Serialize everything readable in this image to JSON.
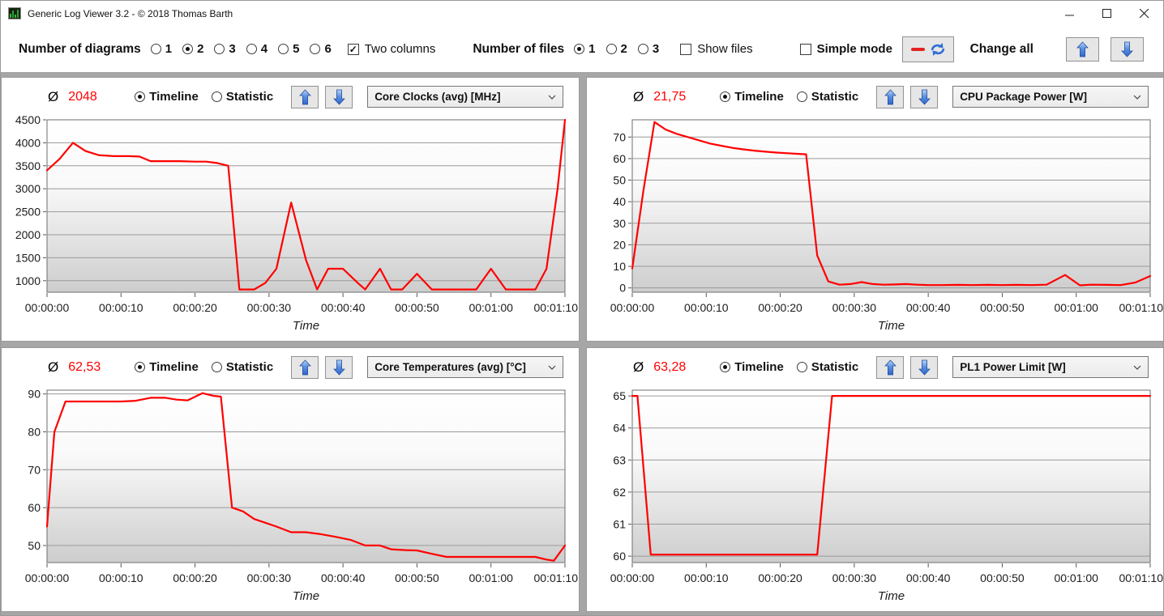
{
  "window": {
    "title": "Generic Log Viewer 3.2 - © 2018 Thomas Barth",
    "icons": {
      "app_icon": "log-chart-icon",
      "minimize": "minimize-dash",
      "maximize": "maximize-square",
      "close": "close-x",
      "move_up": "blue-arrow-up",
      "move_down": "blue-arrow-down",
      "refresh": "red-line-with-refresh-arrows",
      "combo_chevron": "chevron-down"
    }
  },
  "toolbar": {
    "diagrams": {
      "label": "Number of diagrams",
      "options": [
        "1",
        "2",
        "3",
        "4",
        "5",
        "6"
      ],
      "selected": "2"
    },
    "two_columns": {
      "label": "Two columns",
      "checked": true
    },
    "files": {
      "label": "Number of files",
      "options": [
        "1",
        "2",
        "3"
      ],
      "selected": "1"
    },
    "show_files": {
      "label": "Show files",
      "checked": false
    },
    "simple_mode": {
      "label": "Simple mode",
      "checked": false
    },
    "change_all_label": "Change all"
  },
  "panels": [
    {
      "avg_symbol": "Ø",
      "avg_value": "2048",
      "timeline_label": "Timeline",
      "statistic_label": "Statistic",
      "selected_view": "Timeline",
      "metric": "Core Clocks (avg) [MHz]",
      "chart_data": {
        "type": "line",
        "title": "Core Clocks (avg) [MHz]",
        "series_color": "#ff0000",
        "xlabel": "Time",
        "xlim": [
          0,
          70
        ],
        "xticks": [
          0,
          10,
          20,
          30,
          40,
          50,
          60,
          70
        ],
        "xtick_labels": [
          "00:00:00",
          "00:00:10",
          "00:00:20",
          "00:00:30",
          "00:00:40",
          "00:00:50",
          "00:01:00",
          "00:01:10"
        ],
        "ylim": [
          750,
          4500
        ],
        "yticks": [
          1000,
          1500,
          2000,
          2500,
          3000,
          3500,
          4000,
          4500
        ],
        "points": [
          [
            0,
            3400
          ],
          [
            1.7,
            3650
          ],
          [
            3.5,
            4000
          ],
          [
            5.2,
            3820
          ],
          [
            7,
            3730
          ],
          [
            9,
            3710
          ],
          [
            11,
            3710
          ],
          [
            12.5,
            3700
          ],
          [
            14,
            3600
          ],
          [
            16,
            3600
          ],
          [
            18,
            3600
          ],
          [
            20,
            3590
          ],
          [
            21.5,
            3590
          ],
          [
            23,
            3560
          ],
          [
            24.5,
            3500
          ],
          [
            26,
            810
          ],
          [
            28,
            810
          ],
          [
            29.5,
            950
          ],
          [
            31,
            1260
          ],
          [
            33,
            2700
          ],
          [
            35,
            1450
          ],
          [
            36.5,
            810
          ],
          [
            38,
            1260
          ],
          [
            40,
            1260
          ],
          [
            42,
            950
          ],
          [
            43,
            810
          ],
          [
            45,
            1260
          ],
          [
            46.5,
            810
          ],
          [
            48,
            810
          ],
          [
            50,
            1150
          ],
          [
            52,
            810
          ],
          [
            54,
            810
          ],
          [
            56,
            810
          ],
          [
            58,
            810
          ],
          [
            60,
            1260
          ],
          [
            62,
            810
          ],
          [
            64,
            810
          ],
          [
            66,
            810
          ],
          [
            67.5,
            1260
          ],
          [
            69,
            3000
          ],
          [
            70,
            4500
          ]
        ]
      }
    },
    {
      "avg_symbol": "Ø",
      "avg_value": "21,75",
      "timeline_label": "Timeline",
      "statistic_label": "Statistic",
      "selected_view": "Timeline",
      "metric": "CPU Package Power [W]",
      "chart_data": {
        "type": "line",
        "title": "CPU Package Power [W]",
        "series_color": "#ff0000",
        "xlabel": "Time",
        "xlim": [
          0,
          70
        ],
        "xticks": [
          0,
          10,
          20,
          30,
          40,
          50,
          60,
          70
        ],
        "xtick_labels": [
          "00:00:00",
          "00:00:10",
          "00:00:20",
          "00:00:30",
          "00:00:40",
          "00:00:50",
          "00:01:00",
          "00:01:10"
        ],
        "ylim": [
          -2,
          78
        ],
        "yticks": [
          0,
          10,
          20,
          30,
          40,
          50,
          60,
          70
        ],
        "points": [
          [
            0,
            9
          ],
          [
            1.5,
            45
          ],
          [
            3,
            77
          ],
          [
            4.5,
            73.5
          ],
          [
            6,
            71.5
          ],
          [
            7.5,
            70
          ],
          [
            9,
            68.5
          ],
          [
            10.5,
            67
          ],
          [
            12,
            66
          ],
          [
            13.5,
            65
          ],
          [
            15,
            64.3
          ],
          [
            16.5,
            63.7
          ],
          [
            18,
            63.2
          ],
          [
            19.5,
            62.8
          ],
          [
            21,
            62.5
          ],
          [
            22.5,
            62.2
          ],
          [
            23.5,
            62
          ],
          [
            25,
            15
          ],
          [
            26.5,
            3
          ],
          [
            28,
            1.5
          ],
          [
            29.5,
            1.8
          ],
          [
            31,
            2.7
          ],
          [
            32.5,
            1.8
          ],
          [
            34,
            1.5
          ],
          [
            35.5,
            1.6
          ],
          [
            37,
            1.8
          ],
          [
            38.5,
            1.5
          ],
          [
            40,
            1.3
          ],
          [
            42,
            1.3
          ],
          [
            44,
            1.4
          ],
          [
            46,
            1.3
          ],
          [
            48,
            1.4
          ],
          [
            50,
            1.3
          ],
          [
            52,
            1.4
          ],
          [
            54,
            1.3
          ],
          [
            56,
            1.5
          ],
          [
            58.5,
            6
          ],
          [
            60.5,
            1.2
          ],
          [
            62,
            1.5
          ],
          [
            64,
            1.4
          ],
          [
            66,
            1.3
          ],
          [
            68,
            2.5
          ],
          [
            70,
            5.5
          ]
        ]
      }
    },
    {
      "avg_symbol": "Ø",
      "avg_value": "62,53",
      "timeline_label": "Timeline",
      "statistic_label": "Statistic",
      "selected_view": "Timeline",
      "metric": "Core Temperatures (avg) [°C]",
      "chart_data": {
        "type": "line",
        "title": "Core Temperatures (avg) [°C]",
        "series_color": "#ff0000",
        "xlabel": "Time",
        "xlim": [
          0,
          70
        ],
        "xticks": [
          0,
          10,
          20,
          30,
          40,
          50,
          60,
          70
        ],
        "xtick_labels": [
          "00:00:00",
          "00:00:10",
          "00:00:20",
          "00:00:30",
          "00:00:40",
          "00:00:50",
          "00:01:00",
          "00:01:10"
        ],
        "ylim": [
          45.5,
          91
        ],
        "yticks": [
          50,
          60,
          70,
          80,
          90
        ],
        "points": [
          [
            0,
            55
          ],
          [
            1,
            80
          ],
          [
            2.5,
            88
          ],
          [
            5,
            88
          ],
          [
            7.5,
            88
          ],
          [
            10,
            88
          ],
          [
            12,
            88.2
          ],
          [
            14,
            89
          ],
          [
            16,
            89
          ],
          [
            17.5,
            88.5
          ],
          [
            19,
            88.3
          ],
          [
            21,
            90.2
          ],
          [
            22.5,
            89.5
          ],
          [
            23.5,
            89.3
          ],
          [
            25,
            60
          ],
          [
            26.5,
            59
          ],
          [
            28,
            57
          ],
          [
            29.5,
            56
          ],
          [
            31,
            55
          ],
          [
            33,
            53.5
          ],
          [
            35,
            53.5
          ],
          [
            37,
            53
          ],
          [
            39,
            52.3
          ],
          [
            41,
            51.5
          ],
          [
            43,
            50
          ],
          [
            45,
            50
          ],
          [
            46.5,
            49
          ],
          [
            48.5,
            48.8
          ],
          [
            50,
            48.7
          ],
          [
            52,
            47.8
          ],
          [
            54,
            47
          ],
          [
            58,
            47
          ],
          [
            62,
            47
          ],
          [
            66,
            47
          ],
          [
            67.5,
            46.3
          ],
          [
            68.5,
            46
          ],
          [
            70,
            50
          ]
        ]
      }
    },
    {
      "avg_symbol": "Ø",
      "avg_value": "63,28",
      "timeline_label": "Timeline",
      "statistic_label": "Statistic",
      "selected_view": "Timeline",
      "metric": "PL1 Power Limit [W]",
      "chart_data": {
        "type": "line",
        "title": "PL1 Power Limit [W]",
        "series_color": "#ff0000",
        "xlabel": "Time",
        "xlim": [
          0,
          70
        ],
        "xticks": [
          0,
          10,
          20,
          30,
          40,
          50,
          60,
          70
        ],
        "xtick_labels": [
          "00:00:00",
          "00:00:10",
          "00:00:20",
          "00:00:30",
          "00:00:40",
          "00:00:50",
          "00:01:00",
          "00:01:10"
        ],
        "ylim": [
          59.8,
          65.18
        ],
        "yticks": [
          60,
          61,
          62,
          63,
          64,
          65
        ],
        "points": [
          [
            0,
            65
          ],
          [
            0.7,
            65
          ],
          [
            2.5,
            60.05
          ],
          [
            25,
            60.05
          ],
          [
            27,
            65
          ],
          [
            70,
            65
          ]
        ]
      }
    }
  ]
}
